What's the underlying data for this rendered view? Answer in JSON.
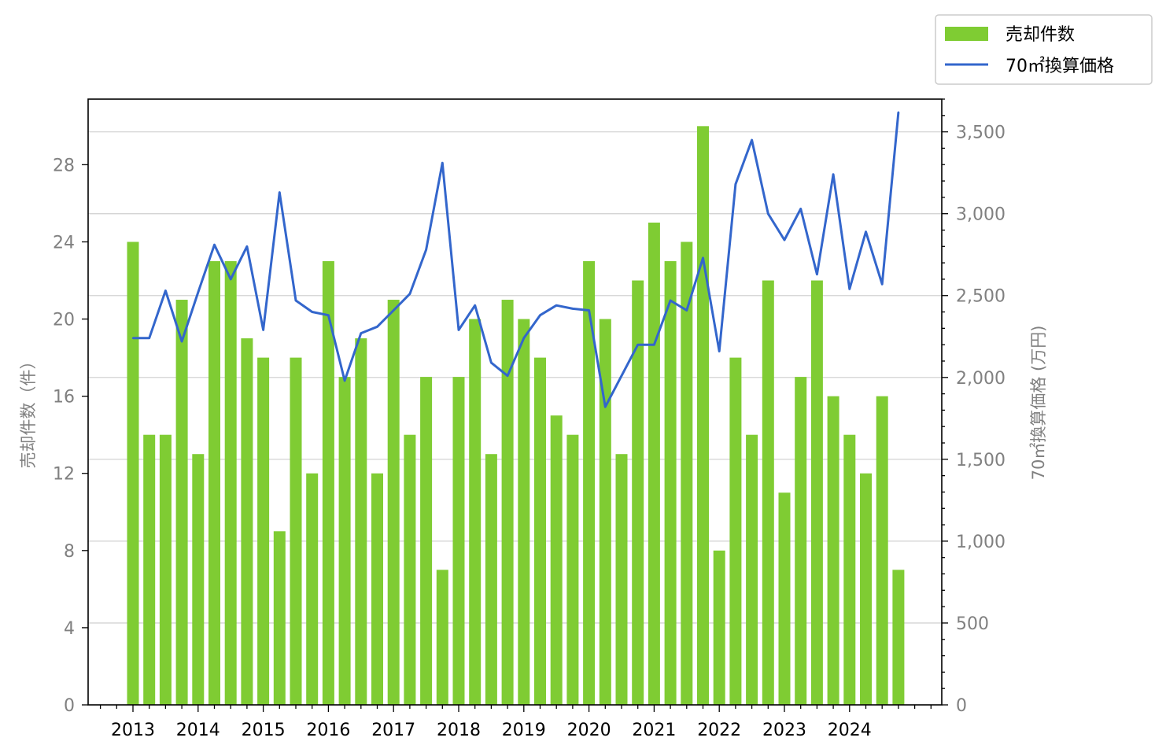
{
  "chart_data": {
    "type": "bar+line",
    "x_tick_labels": [
      "2013",
      "2014",
      "2015",
      "2016",
      "2017",
      "2018",
      "2019",
      "2020",
      "2021",
      "2022",
      "2023",
      "2024"
    ],
    "x_start_year": 2013,
    "periods_per_year": 4,
    "series": [
      {
        "name": "売却件数",
        "type": "bar",
        "axis": "left",
        "color": "#7fcc33",
        "values": [
          24,
          14,
          14,
          21,
          13,
          23,
          23,
          19,
          18,
          9,
          18,
          12,
          23,
          17,
          19,
          12,
          21,
          14,
          17,
          7,
          17,
          20,
          13,
          21,
          20,
          18,
          15,
          14,
          23,
          20,
          13,
          22,
          25,
          23,
          24,
          30,
          8,
          18,
          14,
          22,
          11,
          17,
          22,
          16,
          14,
          12,
          16,
          7
        ]
      },
      {
        "name": "70㎡換算価格",
        "type": "line",
        "axis": "right",
        "color": "#3366cc",
        "values": [
          2240,
          2240,
          2530,
          2220,
          2520,
          2810,
          2600,
          2800,
          2290,
          3130,
          2470,
          2400,
          2380,
          1980,
          2270,
          2310,
          2410,
          2510,
          2780,
          3310,
          2290,
          2440,
          2090,
          2010,
          2240,
          2380,
          2440,
          2420,
          2410,
          1820,
          2010,
          2200,
          2200,
          2470,
          2410,
          2730,
          2160,
          3180,
          3450,
          3000,
          2840,
          3030,
          2630,
          3240,
          2540,
          2890,
          2570,
          3620
        ]
      }
    ],
    "y_left": {
      "label": "売却件数（件）",
      "min": 0,
      "max": 31.4,
      "ticks": [
        0,
        4,
        8,
        12,
        16,
        20,
        24,
        28
      ],
      "tick_labels": [
        "0",
        "4",
        "8",
        "12",
        "16",
        "20",
        "24",
        "28"
      ]
    },
    "y_right": {
      "label": "70㎡換算価格 (万円)",
      "min": 0,
      "max": 3700,
      "ticks": [
        0,
        500,
        1000,
        1500,
        2000,
        2500,
        3000,
        3500
      ],
      "tick_labels": [
        "0",
        "500",
        "1,000",
        "1,500",
        "2,000",
        "2,500",
        "3,000",
        "3,500"
      ]
    },
    "grid": "horizontal (right axis)",
    "legend": {
      "position": "top-right outside",
      "entries": [
        "売却件数",
        "70㎡換算価格"
      ]
    }
  }
}
